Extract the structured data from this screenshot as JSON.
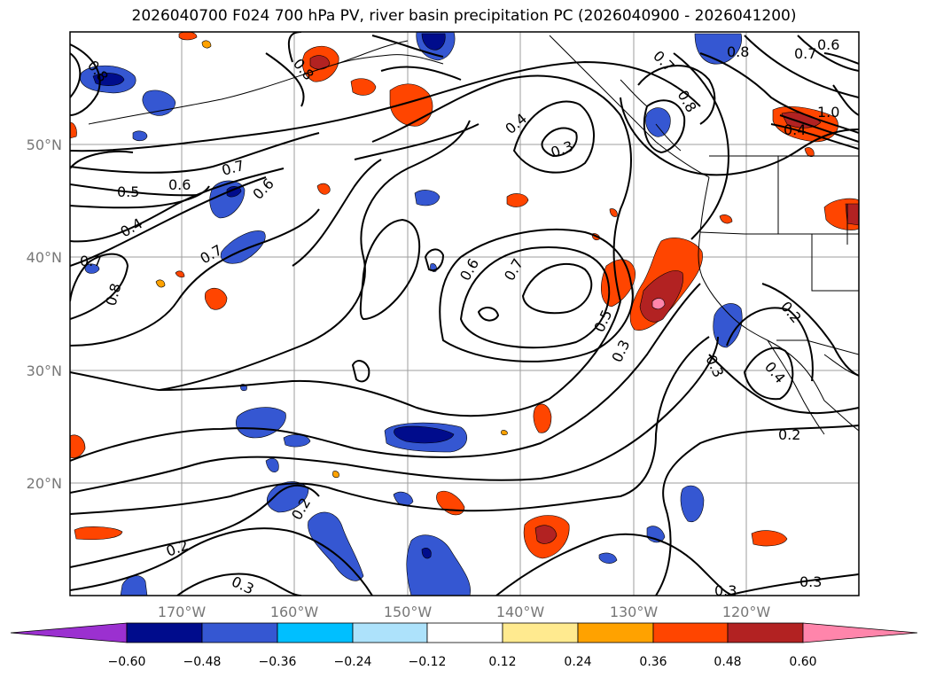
{
  "title": "2026040700 F024 700 hPa PV, river basin precipitation PC (2026040900 - 2026041200)",
  "lat_labels": [
    "50°N",
    "40°N",
    "30°N",
    "20°N"
  ],
  "lon_labels": [
    "170°W",
    "160°W",
    "150°W",
    "140°W",
    "130°W",
    "120°W"
  ],
  "contour_labels": [
    "0.8",
    "0.8",
    "0.7",
    "0.8",
    "0.8",
    "0.6",
    "0.7",
    "1.0",
    "0.4",
    "0.4",
    "0.3",
    "0.7",
    "0.5",
    "0.6",
    "0.6",
    "0.4",
    "0.7",
    "0.7",
    "0.8",
    "0.6",
    "0.7",
    "0.5",
    "0.3",
    "0.2",
    "0.3",
    "0.4",
    "0.2",
    "0.2",
    "0.2",
    "0.3",
    "0.3",
    "0.3"
  ],
  "colorbar": {
    "ticks": [
      "−0.60",
      "−0.48",
      "−0.36",
      "−0.24",
      "−0.12",
      "0.12",
      "0.24",
      "0.36",
      "0.48",
      "0.60"
    ],
    "colors": {
      "lt_-0.60": "#9b30d0",
      "-0.60_-0.48": "#000c8c",
      "-0.48_-0.36": "#3557d2",
      "-0.36_-0.24": "#00bfff",
      "-0.24_-0.12": "#ade2fb",
      "-0.12_0.12": "#ffffff",
      "0.12_0.24": "#ffea8f",
      "0.24_0.36": "#ffa200",
      "0.36_0.48": "#ff4500",
      "0.48_0.60": "#b22222",
      "gt_0.60": "#ff85ab"
    }
  }
}
